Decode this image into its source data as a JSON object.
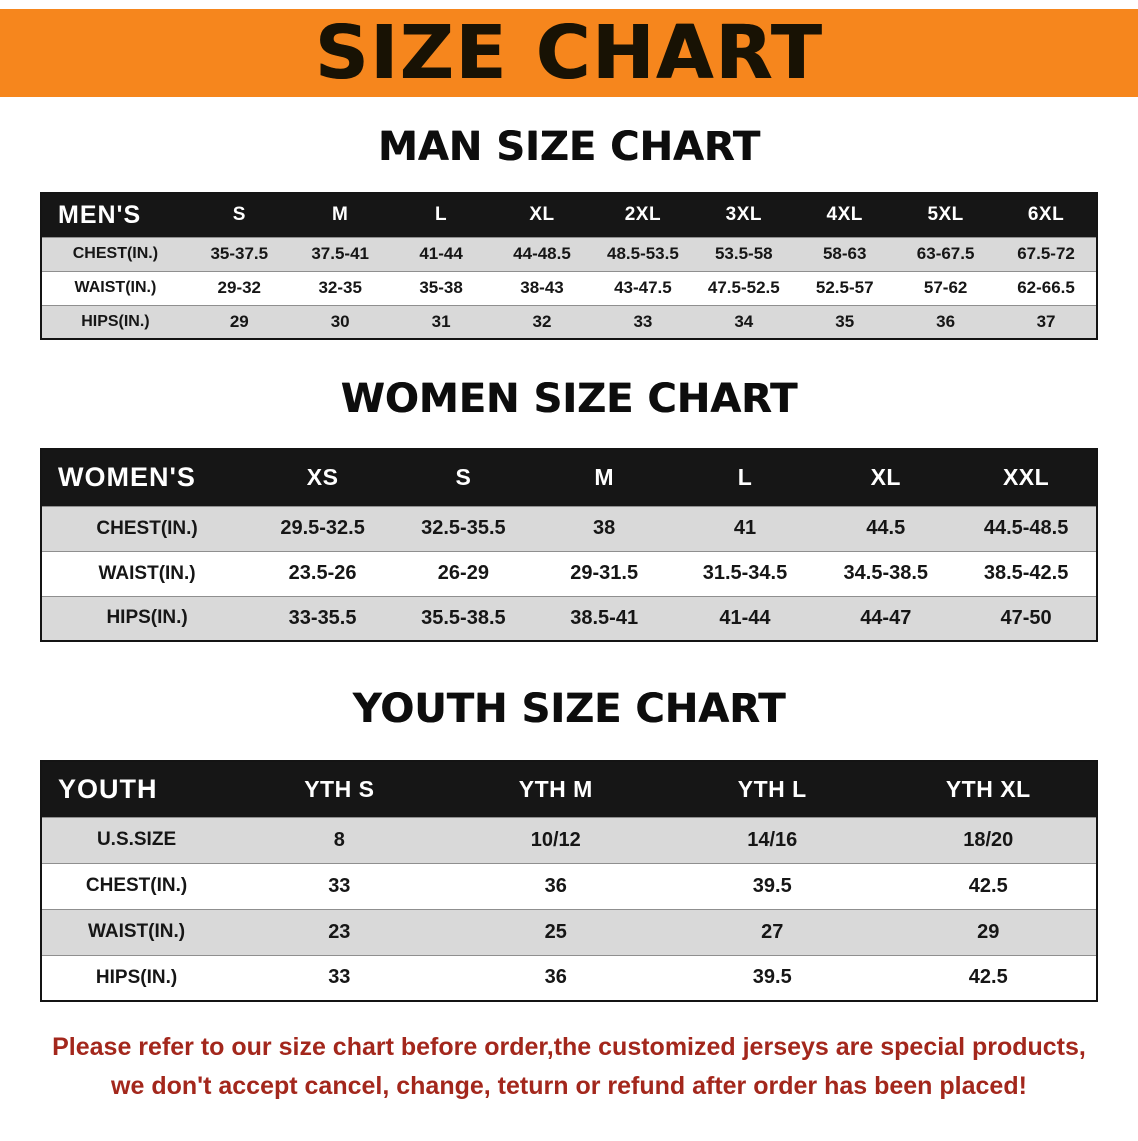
{
  "banner": {
    "title": "SIZE CHART",
    "background_color": "#f6861d"
  },
  "sections": [
    {
      "id": "men",
      "heading": "MAN SIZE CHART",
      "table": {
        "header": [
          "MEN'S",
          "S",
          "M",
          "L",
          "XL",
          "2XL",
          "3XL",
          "4XL",
          "5XL",
          "6XL"
        ],
        "rows": [
          [
            "CHEST(IN.)",
            "35-37.5",
            "37.5-41",
            "41-44",
            "44-48.5",
            "48.5-53.5",
            "53.5-58",
            "58-63",
            "63-67.5",
            "67.5-72"
          ],
          [
            "WAIST(IN.)",
            "29-32",
            "32-35",
            "35-38",
            "38-43",
            "43-47.5",
            "47.5-52.5",
            "52.5-57",
            "57-62",
            "62-66.5"
          ],
          [
            "HIPS(IN.)",
            "29",
            "30",
            "31",
            "32",
            "33",
            "34",
            "35",
            "36",
            "37"
          ]
        ]
      }
    },
    {
      "id": "women",
      "heading": "WOMEN SIZE CHART",
      "table": {
        "header": [
          "WOMEN'S",
          "XS",
          "S",
          "M",
          "L",
          "XL",
          "XXL"
        ],
        "rows": [
          [
            "CHEST(IN.)",
            "29.5-32.5",
            "32.5-35.5",
            "38",
            "41",
            "44.5",
            "44.5-48.5"
          ],
          [
            "WAIST(IN.)",
            "23.5-26",
            "26-29",
            "29-31.5",
            "31.5-34.5",
            "34.5-38.5",
            "38.5-42.5"
          ],
          [
            "HIPS(IN.)",
            "33-35.5",
            "35.5-38.5",
            "38.5-41",
            "41-44",
            "44-47",
            "47-50"
          ]
        ]
      }
    },
    {
      "id": "youth",
      "heading": "YOUTH SIZE CHART",
      "table": {
        "header": [
          "YOUTH",
          "YTH S",
          "YTH M",
          "YTH L",
          "YTH XL"
        ],
        "rows": [
          [
            "U.S.SIZE",
            "8",
            "10/12",
            "14/16",
            "18/20"
          ],
          [
            "CHEST(IN.)",
            "33",
            "36",
            "39.5",
            "42.5"
          ],
          [
            "WAIST(IN.)",
            "23",
            "25",
            "27",
            "29"
          ],
          [
            "HIPS(IN.)",
            "33",
            "36",
            "39.5",
            "42.5"
          ]
        ]
      }
    }
  ],
  "disclaimer": {
    "line1": "Please refer to our size chart before order,the customized jerseys are special products,",
    "line2": "we don't accept cancel, change, teturn or refund after order has been placed!",
    "color": "#a3271c"
  }
}
